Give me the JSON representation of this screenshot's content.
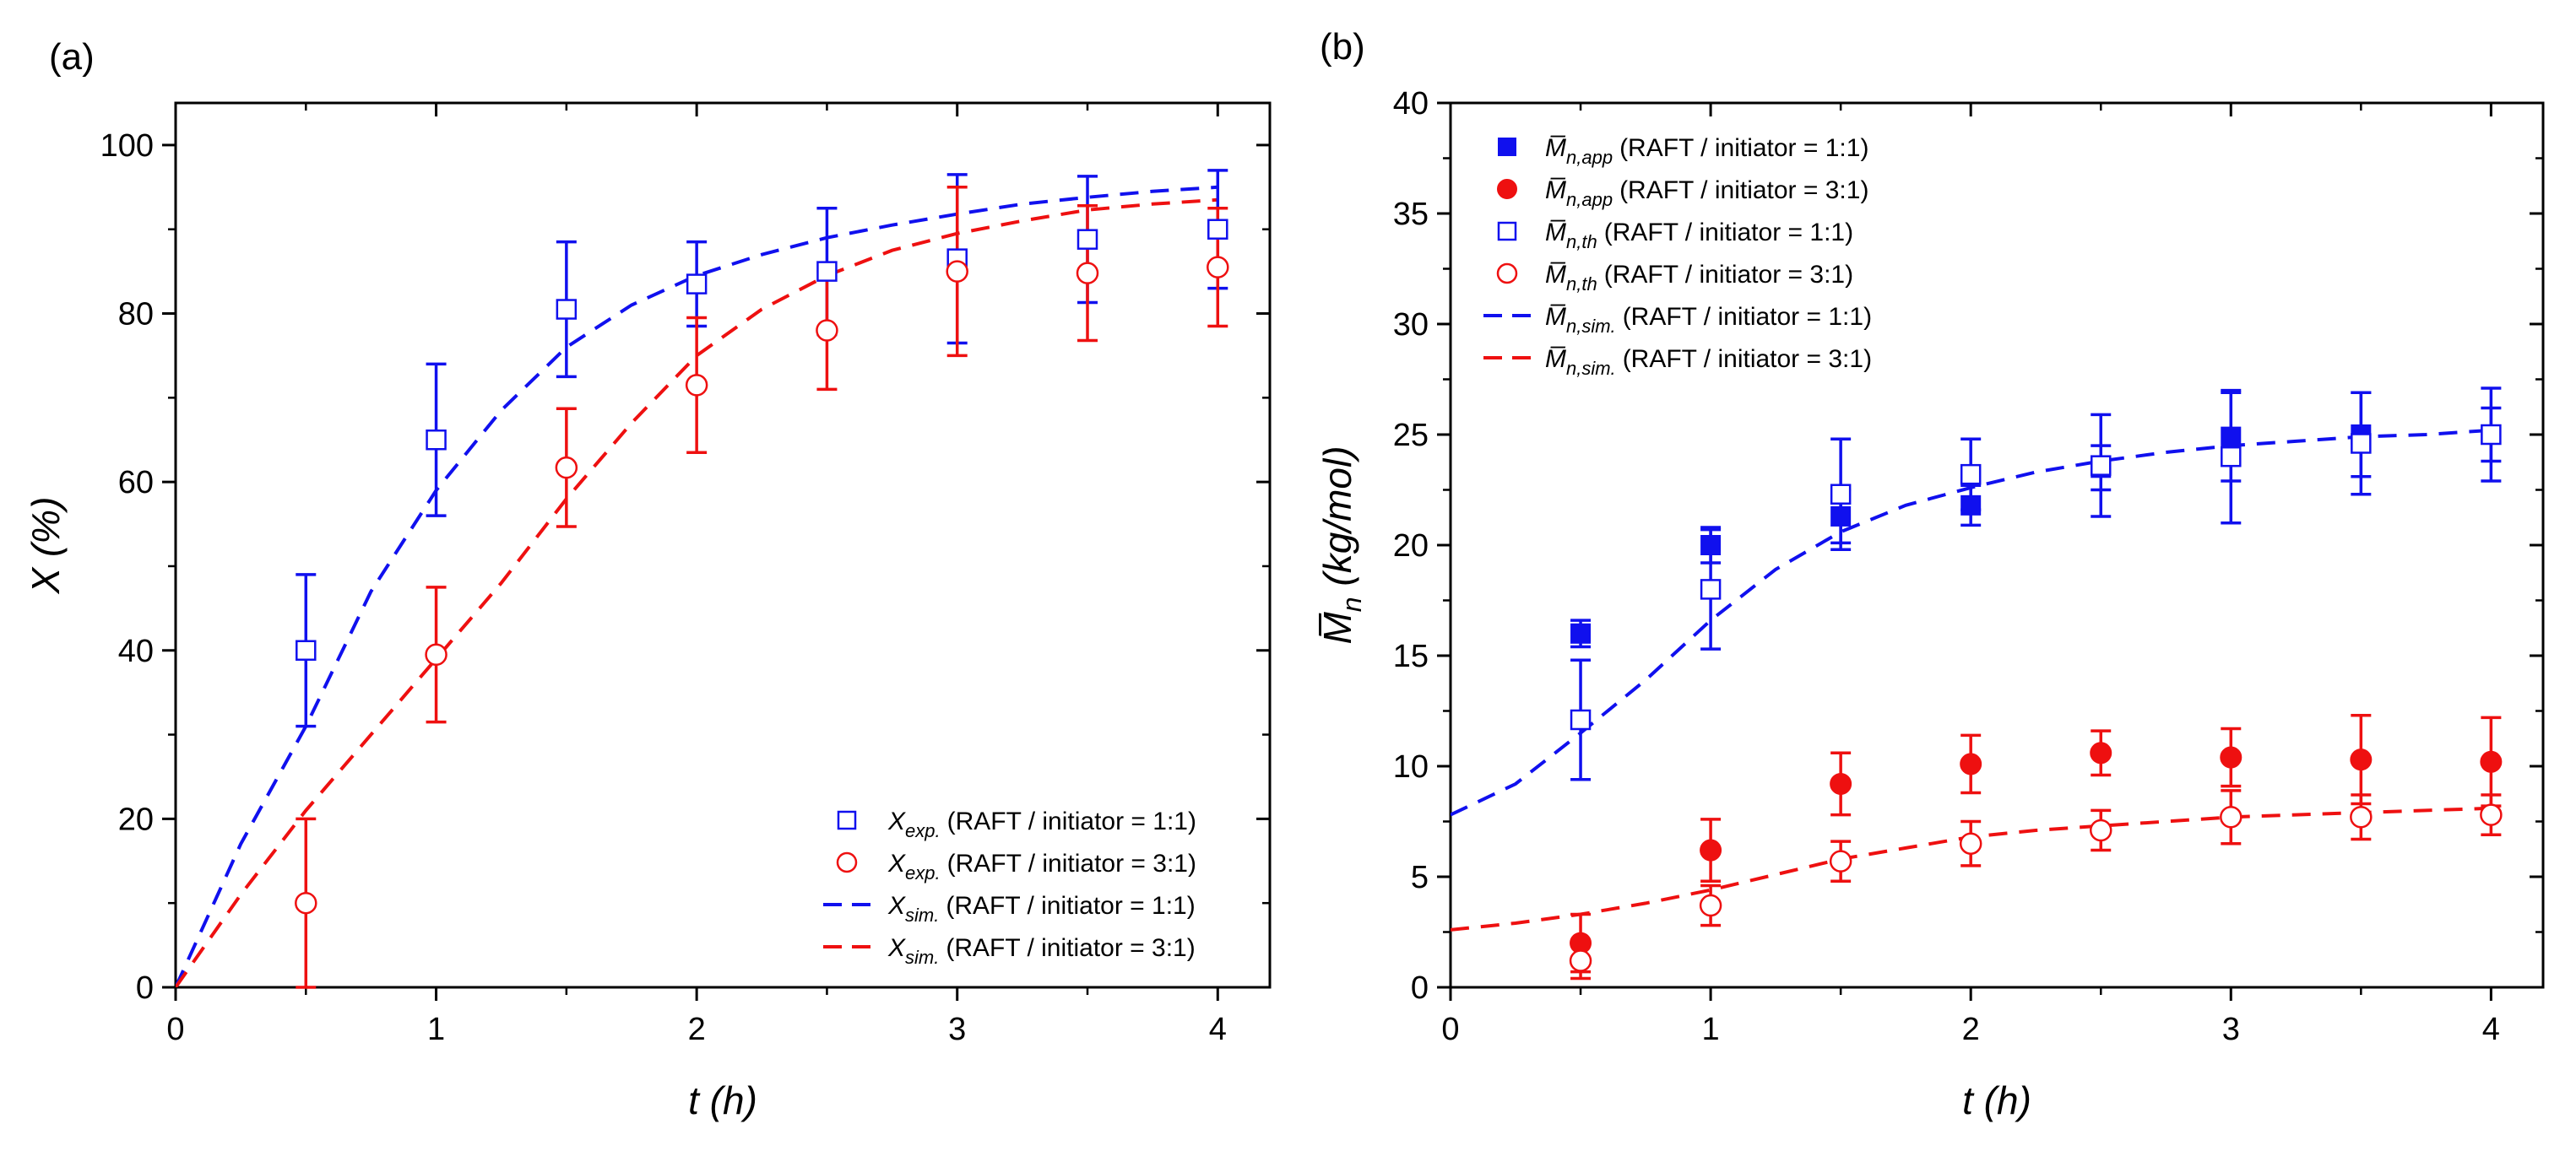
{
  "chart_data": [
    {
      "id": "a",
      "type": "line",
      "panel_label": "(a)",
      "xlabel": "t (h)",
      "ylabel": "X (%)",
      "xlim": [
        0,
        4.2
      ],
      "ylim": [
        0,
        105
      ],
      "xticks": [
        0,
        1,
        2,
        3,
        4
      ],
      "yticks": [
        0,
        20,
        40,
        60,
        80,
        100
      ],
      "legend_position": "bottom-right",
      "series": [
        {
          "name": "X_exp. (RAFT / initiator = 1:1)",
          "var": "X",
          "sub": "exp.",
          "desc": "(RAFT / initiator = 1:1)",
          "kind": "scatter",
          "marker": "square-open",
          "color": "#1010ee",
          "x": [
            0.5,
            1.0,
            1.5,
            2.0,
            2.5,
            3.0,
            3.5,
            4.0
          ],
          "y": [
            40,
            65,
            80.5,
            83.5,
            85,
            86.5,
            88.8,
            90
          ],
          "err": [
            9,
            9,
            8,
            5,
            7.5,
            10,
            7.5,
            7
          ]
        },
        {
          "name": "X_exp. (RAFT / initiator = 3:1)",
          "var": "X",
          "sub": "exp.",
          "desc": "(RAFT / initiator = 3:1)",
          "kind": "scatter",
          "marker": "circle-open",
          "color": "#ee1010",
          "x": [
            0.5,
            1.0,
            1.5,
            2.0,
            2.5,
            3.0,
            3.5,
            4.0
          ],
          "y": [
            10,
            39.5,
            61.7,
            71.5,
            78,
            85,
            84.8,
            85.5
          ],
          "err": [
            10,
            8,
            7,
            8,
            7,
            10,
            8,
            7
          ]
        },
        {
          "name": "X_sim. (RAFT / initiator = 1:1)",
          "var": "X",
          "sub": "sim.",
          "desc": "(RAFT / initiator = 1:1)",
          "kind": "line",
          "dash": true,
          "color": "#1010ee",
          "x": [
            0,
            0.25,
            0.5,
            0.75,
            1.0,
            1.25,
            1.5,
            1.75,
            2.0,
            2.25,
            2.5,
            2.75,
            3.0,
            3.25,
            3.5,
            3.75,
            4.0
          ],
          "y": [
            0,
            17,
            31,
            47,
            59,
            68.5,
            76,
            81,
            84.5,
            87,
            89,
            90.5,
            91.8,
            93,
            93.8,
            94.5,
            95
          ]
        },
        {
          "name": "X_sim. (RAFT / initiator = 3:1)",
          "var": "X",
          "sub": "sim.",
          "desc": "(RAFT / initiator = 3:1)",
          "kind": "line",
          "dash": true,
          "color": "#ee1010",
          "x": [
            0,
            0.25,
            0.5,
            0.75,
            1.0,
            1.25,
            1.5,
            1.75,
            2.0,
            2.25,
            2.5,
            2.75,
            3.0,
            3.25,
            3.5,
            3.75,
            4.0
          ],
          "y": [
            0,
            11,
            21,
            30,
            39,
            48,
            58,
            67,
            75,
            80.5,
            84.5,
            87.5,
            89.5,
            91,
            92.3,
            93,
            93.5
          ]
        }
      ]
    },
    {
      "id": "b",
      "type": "line",
      "panel_label": "(b)",
      "xlabel": "t (h)",
      "ylabel": "M̅n (kg/mol)",
      "ylabel_var": "M̅",
      "ylabel_sub": "n",
      "ylabel_unit": " (kg/mol)",
      "xlim": [
        0,
        4.2
      ],
      "ylim": [
        0,
        40
      ],
      "xticks": [
        0,
        1,
        2,
        3,
        4
      ],
      "yticks": [
        0,
        5,
        10,
        15,
        20,
        25,
        30,
        35,
        40
      ],
      "legend_position": "top-left",
      "series": [
        {
          "name": "M̅n,app (RAFT / initiator = 1:1)",
          "var": "M̅",
          "sub": "n,app",
          "desc": "(RAFT / initiator = 1:1)",
          "kind": "scatter",
          "marker": "square-filled",
          "color": "#1010ee",
          "x": [
            0.5,
            1.0,
            1.5,
            2.0,
            2.5,
            3.0,
            3.5,
            4.0
          ],
          "y": [
            16,
            20,
            21.3,
            21.8,
            23.5,
            24.9,
            25,
            25
          ],
          "err": [
            0.6,
            0.8,
            1.2,
            0.9,
            1.0,
            2.0,
            1.9,
            1.2
          ]
        },
        {
          "name": "M̅n,app (RAFT / initiator = 3:1)",
          "var": "M̅",
          "sub": "n,app",
          "desc": "(RAFT / initiator = 3:1)",
          "kind": "scatter",
          "marker": "circle-filled",
          "color": "#ee1010",
          "x": [
            0.5,
            1.0,
            1.5,
            2.0,
            2.5,
            3.0,
            3.5,
            4.0
          ],
          "y": [
            2,
            6.2,
            9.2,
            10.1,
            10.6,
            10.4,
            10.3,
            10.2
          ],
          "err": [
            1.3,
            1.4,
            1.4,
            1.3,
            1.0,
            1.3,
            2.0,
            2.0
          ]
        },
        {
          "name": "M̅n,th (RAFT / initiator = 1:1)",
          "var": "M̅",
          "sub": "n,th",
          "desc": "(RAFT / initiator = 1:1)",
          "kind": "scatter",
          "marker": "square-open",
          "color": "#1010ee",
          "x": [
            0.5,
            1.0,
            1.5,
            2.0,
            2.5,
            3.0,
            3.5,
            4.0
          ],
          "y": [
            12.1,
            18,
            22.3,
            23.2,
            23.6,
            24.0,
            24.6,
            25
          ],
          "err": [
            2.7,
            2.7,
            2.5,
            1.6,
            2.3,
            3.0,
            2.3,
            2.1
          ]
        },
        {
          "name": "M̅n,th (RAFT / initiator = 3:1)",
          "var": "M̅",
          "sub": "n,th",
          "desc": "(RAFT / initiator = 3:1)",
          "kind": "scatter",
          "marker": "circle-open",
          "color": "#ee1010",
          "x": [
            0.5,
            1.0,
            1.5,
            2.0,
            2.5,
            3.0,
            3.5,
            4.0
          ],
          "y": [
            1.2,
            3.7,
            5.7,
            6.5,
            7.1,
            7.7,
            7.7,
            7.8
          ],
          "err": [
            0.8,
            0.9,
            0.9,
            1.0,
            0.9,
            1.2,
            1.0,
            0.9
          ]
        },
        {
          "name": "M̅n,sim. (RAFT / initiator = 1:1)",
          "var": "M̅",
          "sub": "n,sim.",
          "desc": "(RAFT / initiator = 1:1)",
          "kind": "line",
          "dash": true,
          "color": "#1010ee",
          "x": [
            0,
            0.25,
            0.5,
            0.75,
            1.0,
            1.25,
            1.5,
            1.75,
            2.0,
            2.25,
            2.5,
            2.75,
            3.0,
            3.25,
            3.5,
            3.75,
            4.0
          ],
          "y": [
            7.8,
            9.2,
            11.5,
            13.9,
            16.6,
            18.9,
            20.6,
            21.8,
            22.6,
            23.3,
            23.8,
            24.2,
            24.5,
            24.7,
            24.9,
            25.0,
            25.2
          ]
        },
        {
          "name": "M̅n,sim. (RAFT / initiator = 3:1)",
          "var": "M̅",
          "sub": "n,sim.",
          "desc": "(RAFT / initiator = 3:1)",
          "kind": "line",
          "dash": true,
          "color": "#ee1010",
          "x": [
            0,
            0.25,
            0.5,
            0.75,
            1.0,
            1.25,
            1.5,
            1.75,
            2.0,
            2.25,
            2.5,
            2.75,
            3.0,
            3.25,
            3.5,
            3.75,
            4.0
          ],
          "y": [
            2.6,
            2.9,
            3.3,
            3.8,
            4.4,
            5.1,
            5.8,
            6.3,
            6.8,
            7.1,
            7.3,
            7.5,
            7.7,
            7.8,
            7.9,
            8.0,
            8.1
          ]
        }
      ]
    }
  ]
}
